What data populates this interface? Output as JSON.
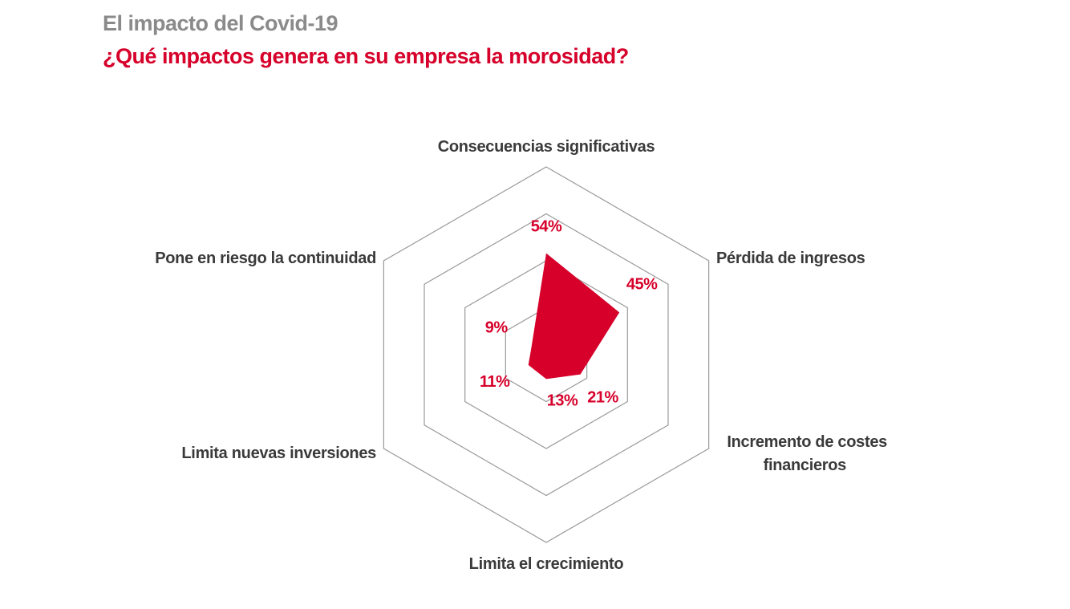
{
  "header": {
    "title": "El impacto del Covid-19",
    "subtitle": "¿Qué impactos genera en su empresa la morosidad?"
  },
  "chart_data": {
    "type": "radar",
    "title": "¿Qué impactos genera en su empresa la morosidad?",
    "categories": [
      "Consecuencias significativas",
      "Pérdida de ingresos",
      "Incremento de costes financieros",
      "Limita el crecimiento",
      "Limita nuevas inversiones",
      "Pone en riesgo la continuidad"
    ],
    "values": [
      54,
      45,
      21,
      13,
      11,
      9
    ],
    "labels": [
      "54%",
      "45%",
      "21%",
      "13%",
      "11%",
      "9%"
    ],
    "rmax": 100,
    "grid_rings": [
      25,
      50,
      75,
      100
    ],
    "fill_color": "#d6002a",
    "grid_color": "#9a9a9a"
  }
}
